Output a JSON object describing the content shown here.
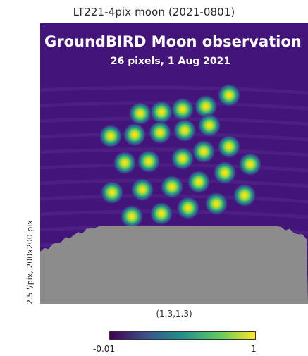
{
  "chart_data": {
    "type": "heatmap",
    "title": "LT221-4pix moon (2021-0801)",
    "overlay_title": "GroundBIRD Moon observation",
    "overlay_subtitle": "26 pixels, 1 Aug 2021",
    "ylabel": "2.5 '/pix,  200x200 pix",
    "xlabel": "(1.3,1.3)",
    "colorbar": {
      "min_label": "-0.01",
      "max_label": "1",
      "min": -0.01,
      "max": 1,
      "colormap": "viridis"
    },
    "background_color": "#43157a",
    "masked_color": "#8c8c8c",
    "n_beams": 26
  }
}
